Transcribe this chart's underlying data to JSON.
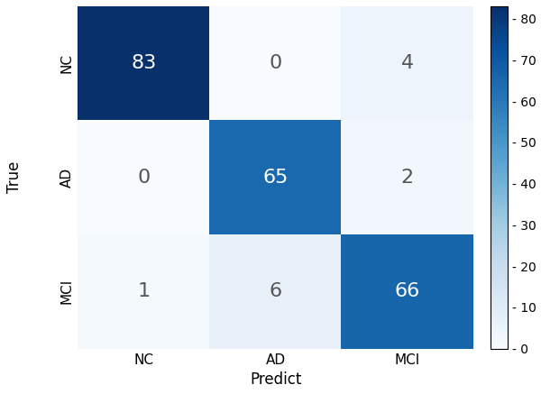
{
  "matrix": [
    [
      83,
      0,
      4
    ],
    [
      0,
      65,
      2
    ],
    [
      1,
      6,
      66
    ]
  ],
  "true_labels": [
    "NC",
    "AD",
    "MCI"
  ],
  "pred_labels": [
    "NC",
    "AD",
    "MCI"
  ],
  "xlabel": "Predict",
  "ylabel": "True",
  "colormap": "Blues",
  "vmin": 0,
  "vmax": 83,
  "text_color_dark": "white",
  "text_color_light": "#555555",
  "fontsize_values": 16,
  "fontsize_tick_labels": 11,
  "fontsize_axis_label": 12,
  "colorbar_ticks": [
    0,
    10,
    20,
    30,
    40,
    50,
    60,
    70,
    80
  ],
  "figsize": [
    6.0,
    4.37
  ],
  "dpi": 100
}
